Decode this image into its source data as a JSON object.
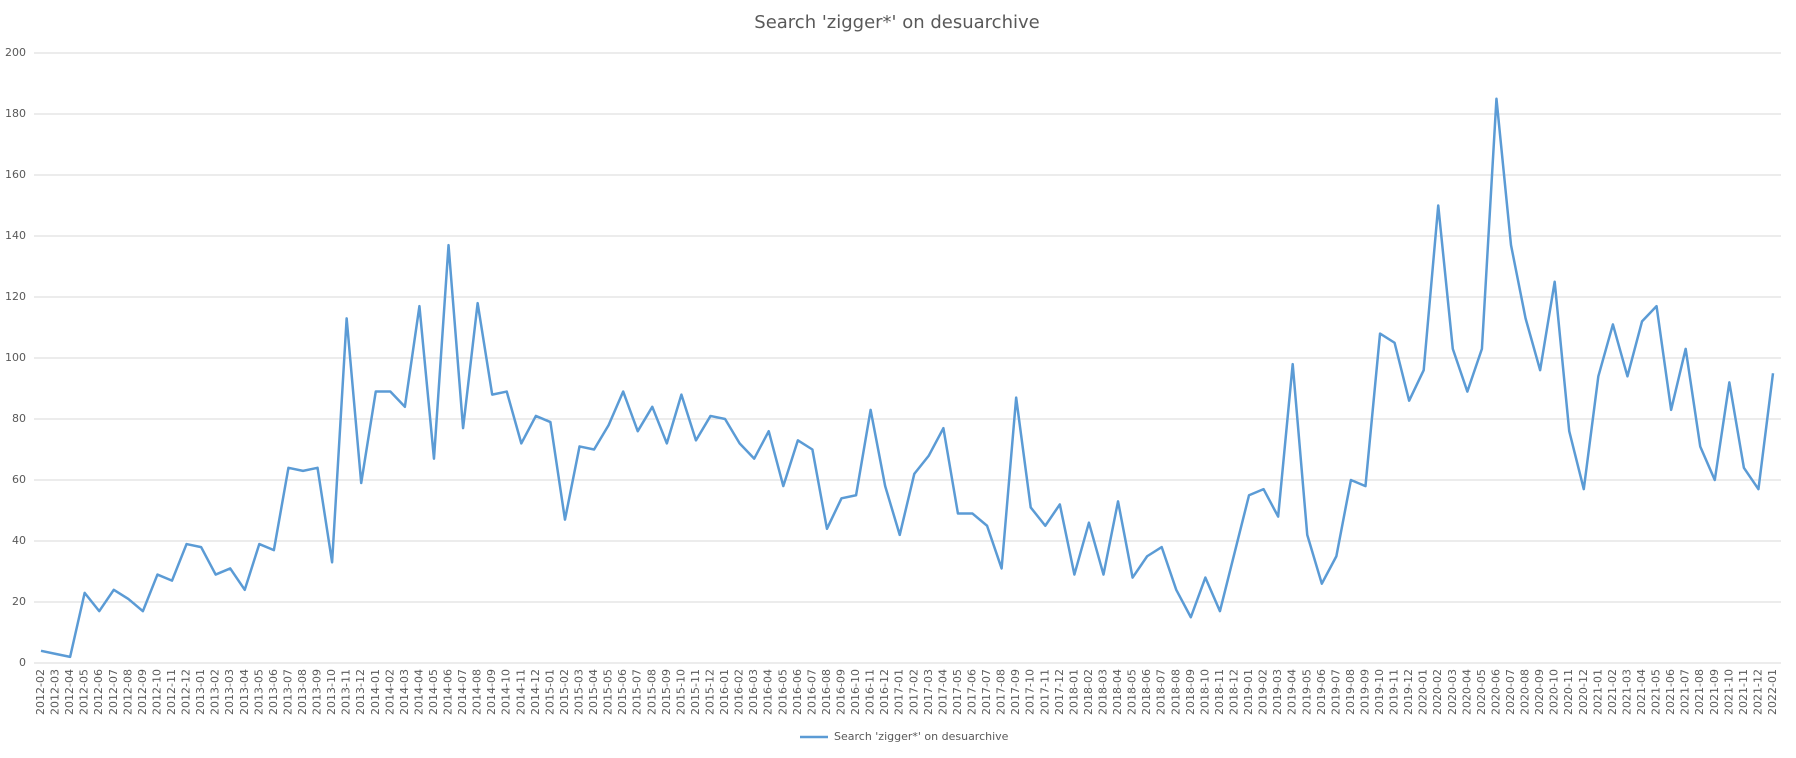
{
  "chart_data": {
    "type": "line",
    "title": "Search 'zigger*' on desuarchive",
    "categories": [
      "2012-02",
      "2012-03",
      "2012-04",
      "2012-05",
      "2012-06",
      "2012-07",
      "2012-08",
      "2012-09",
      "2012-10",
      "2012-11",
      "2012-12",
      "2013-01",
      "2013-02",
      "2013-03",
      "2013-04",
      "2013-05",
      "2013-06",
      "2013-07",
      "2013-08",
      "2013-09",
      "2013-10",
      "2013-11",
      "2013-12",
      "2014-01",
      "2014-02",
      "2014-03",
      "2014-04",
      "2014-05",
      "2014-06",
      "2014-07",
      "2014-08",
      "2014-09",
      "2014-10",
      "2014-11",
      "2014-12",
      "2015-01",
      "2015-02",
      "2015-03",
      "2015-04",
      "2015-05",
      "2015-06",
      "2015-07",
      "2015-08",
      "2015-09",
      "2015-10",
      "2015-11",
      "2015-12",
      "2016-01",
      "2016-02",
      "2016-03",
      "2016-04",
      "2016-05",
      "2016-06",
      "2016-07",
      "2016-08",
      "2016-09",
      "2016-10",
      "2016-11",
      "2016-12",
      "2017-01",
      "2017-02",
      "2017-03",
      "2017-04",
      "2017-05",
      "2017-06",
      "2017-07",
      "2017-08",
      "2017-09",
      "2017-10",
      "2017-11",
      "2017-12",
      "2018-01",
      "2018-02",
      "2018-03",
      "2018-04",
      "2018-05",
      "2018-06",
      "2018-07",
      "2018-08",
      "2018-09",
      "2018-10",
      "2018-11",
      "2018-12",
      "2019-01",
      "2019-02",
      "2019-03",
      "2019-04",
      "2019-05",
      "2019-06",
      "2019-07",
      "2019-08",
      "2019-09",
      "2019-10",
      "2019-11",
      "2019-12",
      "2020-01",
      "2020-02",
      "2020-03",
      "2020-04",
      "2020-05",
      "2020-06",
      "2020-07",
      "2020-08",
      "2020-09",
      "2020-10",
      "2020-11",
      "2020-12",
      "2021-01",
      "2021-02",
      "2021-03",
      "2021-04",
      "2021-05",
      "2021-06",
      "2021-07",
      "2021-08",
      "2021-09",
      "2021-10",
      "2021-11",
      "2021-12",
      "2022-01"
    ],
    "series": [
      {
        "name": "Search 'zigger*' on desuarchive",
        "color": "#5b9bd5",
        "values": [
          4,
          3,
          2,
          23,
          17,
          24,
          21,
          17,
          29,
          27,
          39,
          38,
          29,
          31,
          24,
          39,
          37,
          64,
          63,
          64,
          33,
          113,
          59,
          89,
          89,
          84,
          117,
          67,
          137,
          77,
          118,
          88,
          89,
          72,
          81,
          79,
          47,
          71,
          70,
          78,
          89,
          76,
          84,
          72,
          88,
          73,
          81,
          80,
          72,
          67,
          76,
          58,
          73,
          70,
          44,
          54,
          55,
          83,
          58,
          42,
          62,
          68,
          77,
          49,
          49,
          45,
          31,
          87,
          51,
          45,
          52,
          29,
          46,
          29,
          53,
          28,
          35,
          38,
          24,
          15,
          28,
          17,
          36,
          55,
          57,
          48,
          98,
          42,
          26,
          35,
          60,
          58,
          108,
          105,
          86,
          96,
          150,
          103,
          89,
          103,
          185,
          137,
          113,
          96,
          125,
          76,
          57,
          94,
          111,
          94,
          112,
          117,
          83,
          103,
          71,
          60,
          92,
          64,
          57,
          95
        ]
      }
    ],
    "ylim": [
      0,
      200
    ],
    "yticks": [
      0,
      20,
      40,
      60,
      80,
      100,
      120,
      140,
      160,
      180,
      200
    ],
    "grid": true,
    "legend": "bottom"
  }
}
